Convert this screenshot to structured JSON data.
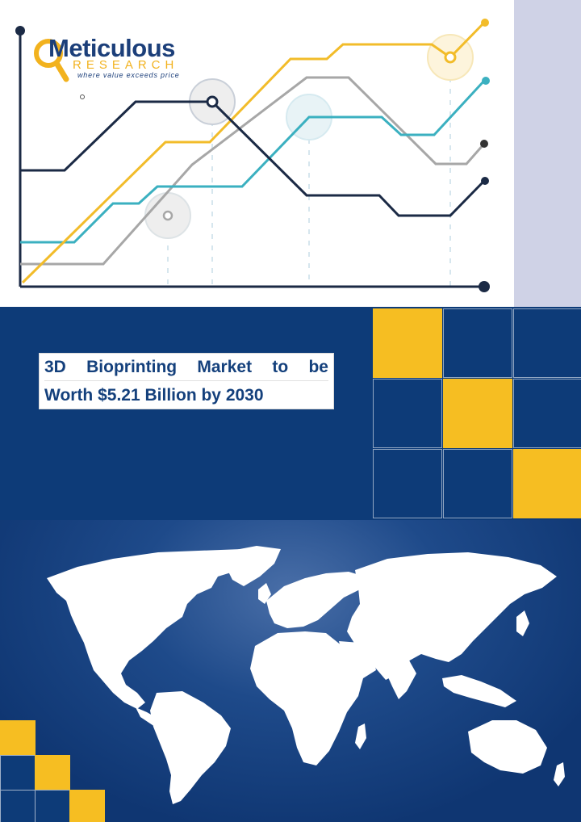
{
  "brand": {
    "name": "Meticulous",
    "subname": "RESEARCH",
    "tagline": "where value exceeds price"
  },
  "headline": {
    "line1_words": [
      "3D",
      "Bioprinting",
      "Market",
      "to",
      "be"
    ],
    "line2": "Worth $5.21 Billion by 2030"
  },
  "colors": {
    "navy": "#0d3b78",
    "yellow": "#f6be22",
    "teal": "#3bb0c0",
    "gray": "#a7a7a7",
    "dark": "#1b2a45",
    "strip": "#cfd2e6"
  },
  "decor": {
    "chart_icon": "trend-lines-illustration",
    "map_icon": "world-map-illustration"
  }
}
